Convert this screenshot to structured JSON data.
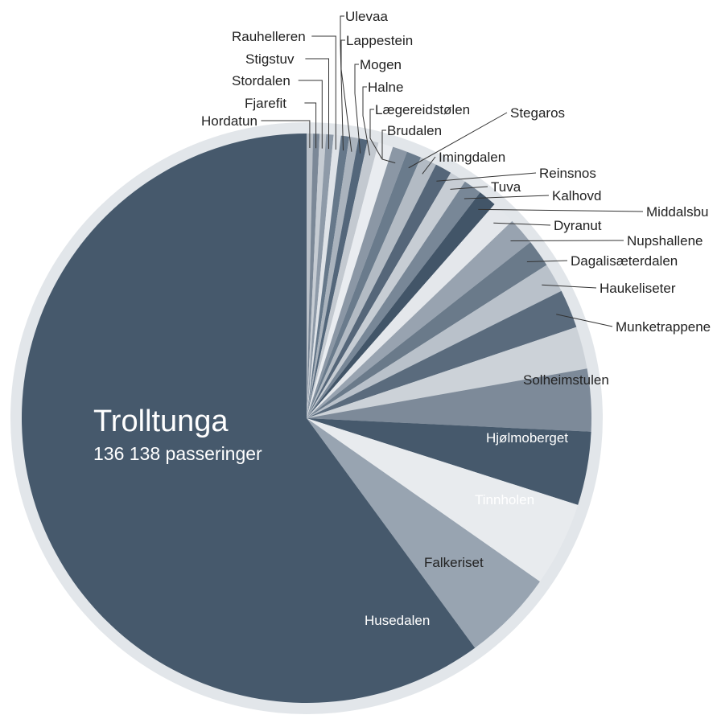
{
  "chart_data": {
    "type": "pie",
    "title": "",
    "highlight": {
      "name": "Trolltunga",
      "value_label": "136 138 passeringer"
    },
    "slices": [
      {
        "name": "Hordatun",
        "value": 0.35,
        "color": "#b9c0c8"
      },
      {
        "name": "Fjarefit",
        "value": 0.35,
        "color": "#7b8897"
      },
      {
        "name": "Stordalen",
        "value": 0.35,
        "color": "#c6ccd3"
      },
      {
        "name": "Stigstuv",
        "value": 0.4,
        "color": "#8e9aa8"
      },
      {
        "name": "Rauhelleren",
        "value": 0.4,
        "color": "#dfe3e8"
      },
      {
        "name": "Ulevaa",
        "value": 0.45,
        "color": "#66788a"
      },
      {
        "name": "Lappestein",
        "value": 0.5,
        "color": "#aab3bd"
      },
      {
        "name": "Mogen",
        "value": 0.5,
        "color": "#53667a"
      },
      {
        "name": "Halne",
        "value": 0.6,
        "color": "#c3c9d0"
      },
      {
        "name": "Lægereidstølen",
        "value": 0.8,
        "color": "#e9ecf0"
      },
      {
        "name": "Brudalen",
        "value": 0.8,
        "color": "#8b97a5"
      },
      {
        "name": "Stegaros",
        "value": 0.8,
        "color": "#6a7b8c"
      },
      {
        "name": "Imingdalen",
        "value": 0.9,
        "color": "#b3bbc4"
      },
      {
        "name": "Reinsnos",
        "value": 0.9,
        "color": "#556679"
      },
      {
        "name": "Tuva",
        "value": 0.9,
        "color": "#c7cdd4"
      },
      {
        "name": "Kalhovd",
        "value": 1.0,
        "color": "#788797"
      },
      {
        "name": "Middalsbu",
        "value": 1.0,
        "color": "#425568"
      },
      {
        "name": "Dyranut",
        "value": 1.3,
        "color": "#e4e7eb"
      },
      {
        "name": "Nupshallene",
        "value": 1.5,
        "color": "#98a3b0"
      },
      {
        "name": "Dagalisæterdalen",
        "value": 1.5,
        "color": "#6a7a8a"
      },
      {
        "name": "Haukeliseter",
        "value": 1.6,
        "color": "#b9c1ca"
      },
      {
        "name": "Munketrappene",
        "value": 2.1,
        "color": "#5a6b7d"
      },
      {
        "name": "Solheimstulen",
        "value": 2.3,
        "color": "#ccd2d8"
      },
      {
        "name": "Hjølmoberget",
        "value": 3.4,
        "color": "#7d8a99"
      },
      {
        "name": "Tinnholen",
        "value": 4.0,
        "color": "#46596c"
      },
      {
        "name": "Falkeriset",
        "value": 4.6,
        "color": "#e8ebee"
      },
      {
        "name": "Husedalen",
        "value": 5.0,
        "color": "#98a4b1"
      },
      {
        "name": "Trolltunga",
        "value": 57.6,
        "color": "#46596c"
      }
    ],
    "outer_ring_color": "#e2e6ea"
  }
}
